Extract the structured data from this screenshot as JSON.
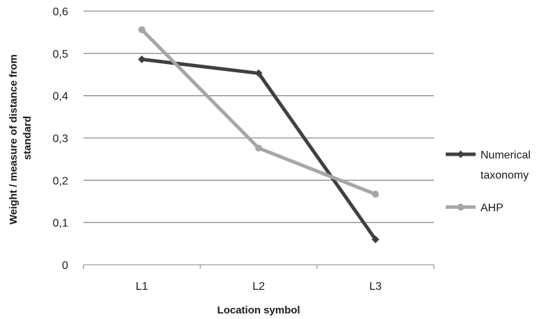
{
  "chart_data": {
    "type": "line",
    "title": "",
    "xlabel": "Location symbol",
    "ylabel_lines": [
      "Weight / measure of distance from",
      "standard"
    ],
    "categories": [
      "L1",
      "L2",
      "L3"
    ],
    "ylim": [
      0,
      0.6
    ],
    "yticks": [
      0,
      0.1,
      0.2,
      0.3,
      0.4,
      0.5,
      0.6
    ],
    "ytick_labels": [
      "0",
      "0,1",
      "0,2",
      "0,3",
      "0,4",
      "0,5",
      "0,6"
    ],
    "grid": "horizontal",
    "legend_position": "right",
    "series": [
      {
        "name_lines": [
          "Numerical",
          "taxonomy"
        ],
        "values": [
          0.486,
          0.453,
          0.06
        ],
        "color": "#404040",
        "marker": "diamond"
      },
      {
        "name_lines": [
          "AHP"
        ],
        "values": [
          0.556,
          0.276,
          0.167
        ],
        "color": "#a6a6a6",
        "marker": "circle"
      }
    ]
  }
}
